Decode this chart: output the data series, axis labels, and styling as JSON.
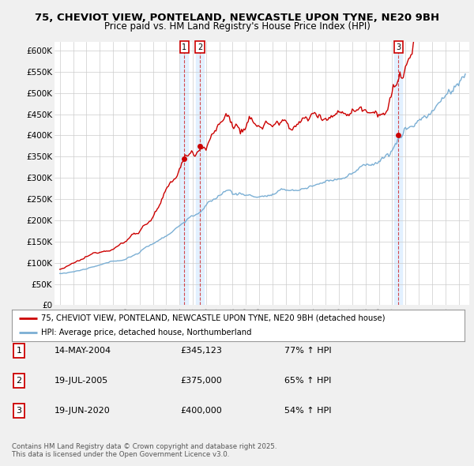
{
  "title_line1": "75, CHEVIOT VIEW, PONTELAND, NEWCASTLE UPON TYNE, NE20 9BH",
  "title_line2": "Price paid vs. HM Land Registry's House Price Index (HPI)",
  "bg_color": "#f0f0f0",
  "plot_bg_color": "#ffffff",
  "red_color": "#cc0000",
  "blue_color": "#7bafd4",
  "shade_color": "#ddeeff",
  "ylim": [
    0,
    620000
  ],
  "yticks": [
    0,
    50000,
    100000,
    150000,
    200000,
    250000,
    300000,
    350000,
    400000,
    450000,
    500000,
    550000,
    600000
  ],
  "ytick_labels": [
    "£0",
    "£50K",
    "£100K",
    "£150K",
    "£200K",
    "£250K",
    "£300K",
    "£350K",
    "£400K",
    "£450K",
    "£500K",
    "£550K",
    "£600K"
  ],
  "sale1_x": 2004.37,
  "sale1_price": 345123,
  "sale1_label": "1",
  "sale2_x": 2005.55,
  "sale2_price": 375000,
  "sale2_label": "2",
  "sale3_x": 2020.47,
  "sale3_price": 400000,
  "sale3_label": "3",
  "legend_line1": "75, CHEVIOT VIEW, PONTELAND, NEWCASTLE UPON TYNE, NE20 9BH (detached house)",
  "legend_line2": "HPI: Average price, detached house, Northumberland",
  "table_entries": [
    {
      "num": "1",
      "date": "14-MAY-2004",
      "price": "£345,123",
      "hpi": "77% ↑ HPI"
    },
    {
      "num": "2",
      "date": "19-JUL-2005",
      "price": "£375,000",
      "hpi": "65% ↑ HPI"
    },
    {
      "num": "3",
      "date": "19-JUN-2020",
      "price": "£400,000",
      "hpi": "54% ↑ HPI"
    }
  ],
  "footer": "Contains HM Land Registry data © Crown copyright and database right 2025.\nThis data is licensed under the Open Government Licence v3.0."
}
